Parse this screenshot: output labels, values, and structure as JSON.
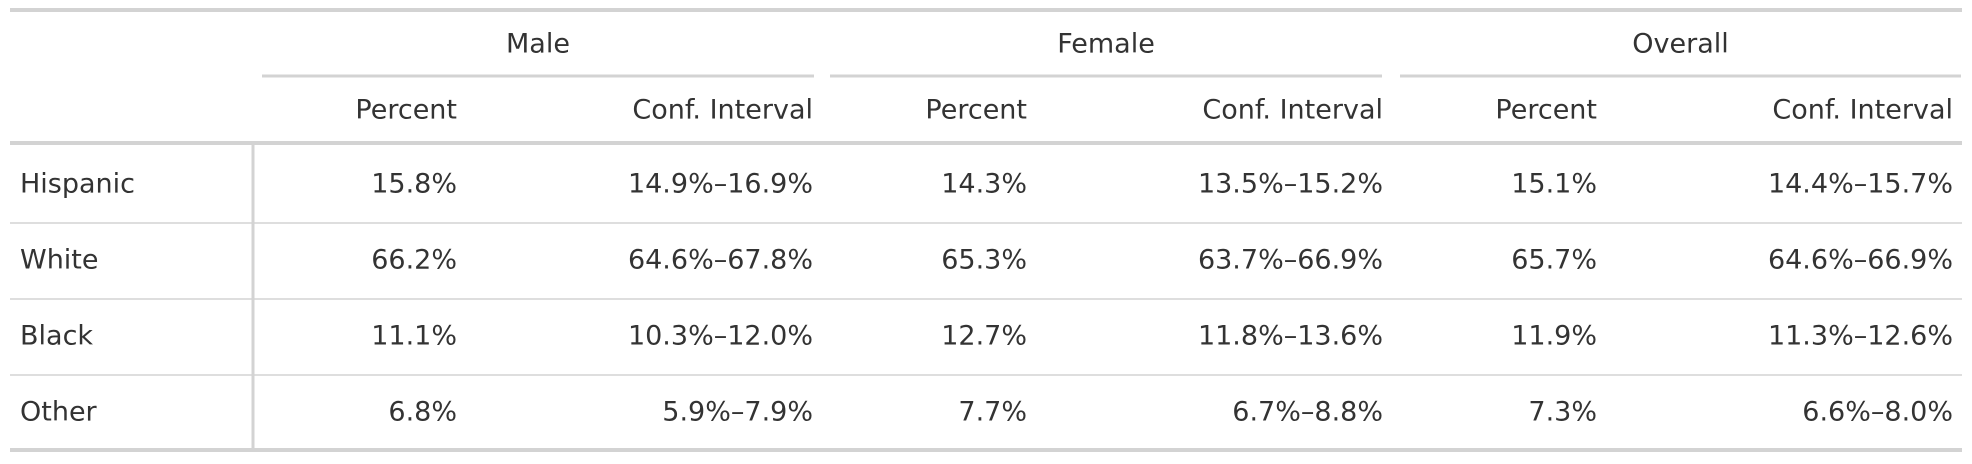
{
  "table": {
    "spanners": [
      "Male",
      "Female",
      "Overall"
    ],
    "columns": [
      "Percent",
      "Conf. Interval",
      "Percent",
      "Conf. Interval",
      "Percent",
      "Conf. Interval"
    ],
    "rows": [
      [
        "Hispanic",
        "15.8%",
        "14.9%–16.9%",
        "14.3%",
        "13.5%–15.2%",
        "15.1%",
        "14.4%–15.7%"
      ],
      [
        "White",
        "66.2%",
        "64.6%–67.8%",
        "65.3%",
        "63.7%–66.9%",
        "65.7%",
        "64.6%–66.9%"
      ],
      [
        "Black",
        "11.1%",
        "10.3%–12.0%",
        "12.7%",
        "11.8%–13.6%",
        "11.9%",
        "11.3%–12.6%"
      ],
      [
        "Other",
        "6.8%",
        "5.9%–7.9%",
        "7.7%",
        "6.7%–8.8%",
        "7.3%",
        "6.6%–8.0%"
      ]
    ]
  }
}
